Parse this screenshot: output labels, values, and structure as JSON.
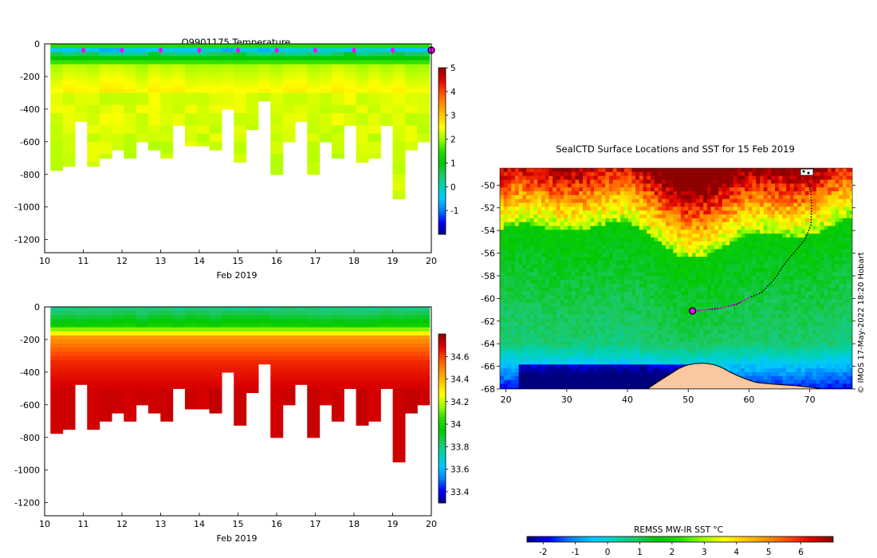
{
  "colors": {
    "jet": [
      "#00007f",
      "#0000ff",
      "#007fff",
      "#00c8ff",
      "#00d2b4",
      "#1ec864",
      "#00c800",
      "#28dc00",
      "#96ff00",
      "#ffff00",
      "#ffc800",
      "#ff8c00",
      "#ff4600",
      "#dc0000",
      "#8c0000"
    ],
    "land": "#f9c8a0",
    "station_marker": "#ff00ff",
    "track": "#000000"
  },
  "chart_data": [
    {
      "id": "temperature-section",
      "type": "heatmap",
      "title": "Q9901175  Temperature",
      "xlabel": "Feb 2019",
      "ylabel": "",
      "xlim": [
        10,
        20
      ],
      "ylim": [
        -1280,
        0
      ],
      "xticks": [
        "10",
        "11",
        "12",
        "13",
        "14",
        "15",
        "16",
        "17",
        "18",
        "19",
        "20"
      ],
      "yticks": [
        "0",
        "-200",
        "-400",
        "-600",
        "-800",
        "-1000",
        "-1200"
      ],
      "colorbar": {
        "min": -2,
        "max": 5,
        "ticks": [
          "5",
          "4",
          "3",
          "2",
          "1",
          "0",
          "-1"
        ]
      },
      "station_markers_x": [
        11,
        12,
        13,
        14,
        15,
        16,
        17,
        18,
        19
      ],
      "current_marker_x": 20,
      "profile_bottom_depths": [
        -760,
        -740,
        -460,
        -750,
        -690,
        -650,
        -700,
        -600,
        -640,
        -680,
        -480,
        -620,
        -610,
        -650,
        -380,
        -720,
        -520,
        -350,
        -780,
        -580,
        -460,
        -800,
        -590,
        -700,
        -480,
        -720,
        -700,
        -500,
        -950,
        -650,
        -600
      ],
      "surface_value": 1.4,
      "deep_value": 2.4
    },
    {
      "id": "salinity-section",
      "type": "heatmap",
      "title": "",
      "xlabel": "Feb 2019",
      "ylabel": "",
      "xlim": [
        10,
        20
      ],
      "ylim": [
        -1280,
        0
      ],
      "xticks": [
        "10",
        "11",
        "12",
        "13",
        "14",
        "15",
        "16",
        "17",
        "18",
        "19",
        "20"
      ],
      "yticks": [
        "0",
        "-200",
        "-400",
        "-600",
        "-800",
        "-1000",
        "-1200"
      ],
      "colorbar": {
        "min": 33.3,
        "max": 34.8,
        "ticks": [
          "34.6",
          "34.4",
          "34.2",
          "34",
          "33.8",
          "33.6",
          "33.4"
        ]
      },
      "profile_bottom_depths": [
        -760,
        -740,
        -460,
        -750,
        -690,
        -650,
        -700,
        -600,
        -640,
        -680,
        -480,
        -620,
        -610,
        -650,
        -380,
        -720,
        -520,
        -350,
        -780,
        -580,
        -460,
        -800,
        -590,
        -700,
        -480,
        -720,
        -700,
        -500,
        -950,
        -650,
        -600
      ],
      "surface_value": 33.85,
      "deep_value": 34.72
    },
    {
      "id": "sst-map",
      "type": "heatmap",
      "title": "SealCTD Surface Locations and SST for 15 Feb 2019",
      "xlim": [
        19,
        77
      ],
      "ylim": [
        -68,
        -48.5
      ],
      "xticks": [
        "20",
        "30",
        "40",
        "50",
        "60",
        "70"
      ],
      "yticks": [
        "-50",
        "-52",
        "-54",
        "-56",
        "-58",
        "-60",
        "-62",
        "-64",
        "-66",
        "-68"
      ],
      "colorbar": {
        "label": "REMSS MW-IR SST °C",
        "min": -2.5,
        "max": 7,
        "ticks": [
          "-2",
          "-1",
          "0",
          "1",
          "2",
          "3",
          "4",
          "5",
          "6"
        ]
      },
      "track": [
        [
          69.6,
          -49.6
        ],
        [
          70.2,
          -50.5
        ],
        [
          70.3,
          -52.0
        ],
        [
          70.2,
          -53.5
        ],
        [
          69.2,
          -54.8
        ],
        [
          67.5,
          -55.9
        ],
        [
          65.8,
          -57.0
        ],
        [
          64.2,
          -58.3
        ],
        [
          62.0,
          -59.5
        ],
        [
          60.2,
          -59.9
        ],
        [
          58.0,
          -60.5
        ],
        [
          55.0,
          -60.9
        ],
        [
          52.8,
          -61.0
        ],
        [
          50.8,
          -61.1
        ]
      ],
      "current_position": [
        50.7,
        -61.1
      ],
      "credit": "© IMOS 17-May-2022 18:20 Hobart"
    }
  ]
}
